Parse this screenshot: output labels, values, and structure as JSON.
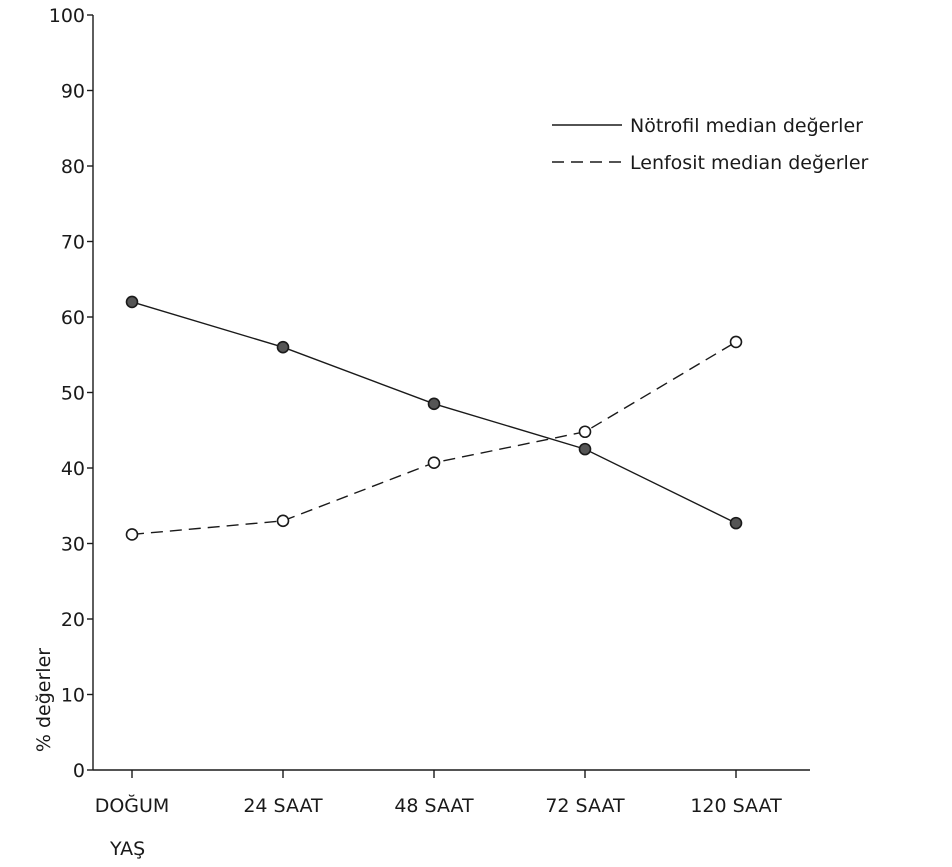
{
  "chart_data": {
    "type": "line",
    "title": "",
    "xlabel": "YAŞ",
    "ylabel": "% değerler",
    "categories": [
      "DOĞUM",
      "24 SAAT",
      "48 SAAT",
      "72 SAAT",
      "120 SAAT"
    ],
    "ylim": [
      0,
      100
    ],
    "yticks": [
      0,
      10,
      20,
      30,
      40,
      50,
      60,
      70,
      80,
      90,
      100
    ],
    "grid": false,
    "legend_position": "top-right",
    "series": [
      {
        "name": "Nötrofil median değerler",
        "values": [
          62,
          56,
          48.5,
          42.5,
          32.7
        ],
        "line_style": "solid",
        "marker": "filled-circle",
        "color": "#1a1a1a"
      },
      {
        "name": "Lenfosit median değerler",
        "values": [
          31.2,
          33,
          40.7,
          44.8,
          56.7
        ],
        "line_style": "dashed",
        "marker": "open-circle",
        "color": "#1a1a1a"
      }
    ]
  }
}
